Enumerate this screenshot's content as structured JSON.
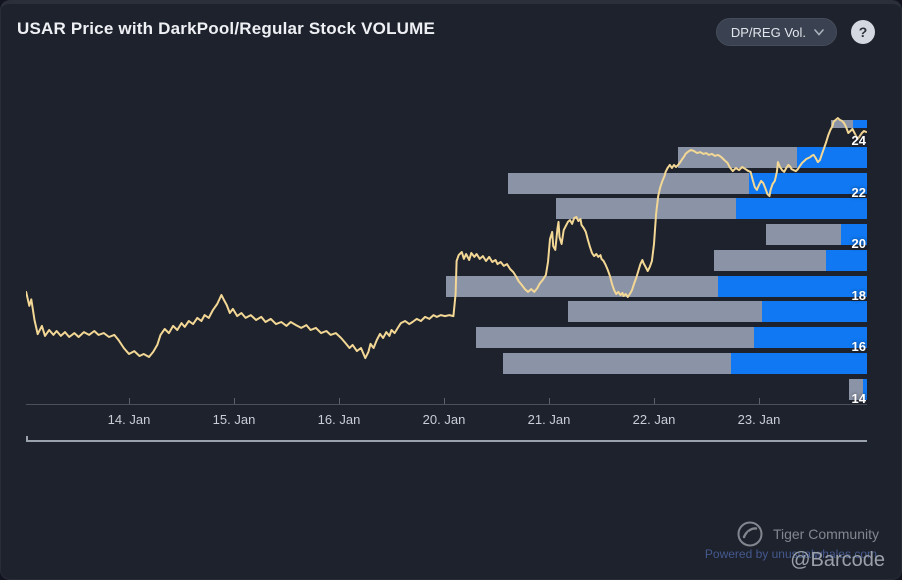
{
  "header": {
    "title": "USAR Price with DarkPool/Regular Stock VOLUME",
    "volume_selector": {
      "label": "DP/REG Vol."
    },
    "help_label": "?"
  },
  "footer": {
    "community_label": "Tiger Community",
    "powered_by": "Powered by unusualwhales.com",
    "watermark": "@Barcode"
  },
  "colors": {
    "background": "#1e222c",
    "price_line": "#f2d795",
    "dark_pool_bar": "#8b93a6",
    "regular_bar": "#0f78f2",
    "y_label": "#ffffff",
    "x_label": "#c9ced6",
    "axis_line": "#4a505c",
    "baseline": "#9aa2ae"
  },
  "chart_data": {
    "type": "line+barh",
    "title": "USAR Price with DarkPool/Regular Stock VOLUME",
    "x_axis": {
      "tick_labels": [
        "14. Jan",
        "15. Jan",
        "16. Jan",
        "20. Jan",
        "21. Jan",
        "22. Jan",
        "23. Jan"
      ],
      "unit": "trading-day index; 0 = 14. Jan tick, 1 unit per listed session"
    },
    "y_axis": {
      "ticks": [
        14,
        16,
        18,
        20,
        22,
        24
      ],
      "range": [
        13.75,
        24.95
      ],
      "side": "right"
    },
    "price_line": {
      "name": "USAR price",
      "points": [
        [
          -0.98,
          18.14
        ],
        [
          -0.95,
          17.6
        ],
        [
          -0.93,
          17.85
        ],
        [
          -0.9,
          17.05
        ],
        [
          -0.87,
          16.5
        ],
        [
          -0.83,
          16.82
        ],
        [
          -0.8,
          16.43
        ],
        [
          -0.76,
          16.66
        ],
        [
          -0.72,
          16.47
        ],
        [
          -0.69,
          16.62
        ],
        [
          -0.65,
          16.43
        ],
        [
          -0.61,
          16.58
        ],
        [
          -0.57,
          16.39
        ],
        [
          -0.52,
          16.54
        ],
        [
          -0.48,
          16.39
        ],
        [
          -0.43,
          16.58
        ],
        [
          -0.38,
          16.47
        ],
        [
          -0.33,
          16.62
        ],
        [
          -0.29,
          16.47
        ],
        [
          -0.24,
          16.54
        ],
        [
          -0.19,
          16.39
        ],
        [
          -0.14,
          16.47
        ],
        [
          -0.1,
          16.27
        ],
        [
          -0.05,
          15.96
        ],
        [
          0,
          15.73
        ],
        [
          0.05,
          15.84
        ],
        [
          0.1,
          15.65
        ],
        [
          0.14,
          15.73
        ],
        [
          0.19,
          15.61
        ],
        [
          0.23,
          15.81
        ],
        [
          0.27,
          16.08
        ],
        [
          0.3,
          16.47
        ],
        [
          0.34,
          16.7
        ],
        [
          0.38,
          16.54
        ],
        [
          0.42,
          16.82
        ],
        [
          0.46,
          16.66
        ],
        [
          0.5,
          16.93
        ],
        [
          0.53,
          16.78
        ],
        [
          0.57,
          17.01
        ],
        [
          0.61,
          16.89
        ],
        [
          0.65,
          17.13
        ],
        [
          0.69,
          17.01
        ],
        [
          0.72,
          17.24
        ],
        [
          0.76,
          17.13
        ],
        [
          0.8,
          17.44
        ],
        [
          0.84,
          17.67
        ],
        [
          0.88,
          18.02
        ],
        [
          0.9,
          17.86
        ],
        [
          0.93,
          17.63
        ],
        [
          0.96,
          17.32
        ],
        [
          0.99,
          17.48
        ],
        [
          1.03,
          17.2
        ],
        [
          1.07,
          17.32
        ],
        [
          1.11,
          17.13
        ],
        [
          1.16,
          17.24
        ],
        [
          1.21,
          17.05
        ],
        [
          1.26,
          17.17
        ],
        [
          1.3,
          16.97
        ],
        [
          1.35,
          17.09
        ],
        [
          1.4,
          16.89
        ],
        [
          1.45,
          16.97
        ],
        [
          1.5,
          16.82
        ],
        [
          1.54,
          16.97
        ],
        [
          1.59,
          16.85
        ],
        [
          1.64,
          16.74
        ],
        [
          1.69,
          16.85
        ],
        [
          1.73,
          16.66
        ],
        [
          1.78,
          16.74
        ],
        [
          1.83,
          16.54
        ],
        [
          1.88,
          16.62
        ],
        [
          1.92,
          16.47
        ],
        [
          1.97,
          16.54
        ],
        [
          2.02,
          16.35
        ],
        [
          2.06,
          16.16
        ],
        [
          2.1,
          15.96
        ],
        [
          2.13,
          16.08
        ],
        [
          2.17,
          15.84
        ],
        [
          2.21,
          15.96
        ],
        [
          2.25,
          15.57
        ],
        [
          2.28,
          15.81
        ],
        [
          2.3,
          16.12
        ],
        [
          2.33,
          15.96
        ],
        [
          2.36,
          16.27
        ],
        [
          2.39,
          16.51
        ],
        [
          2.42,
          16.35
        ],
        [
          2.45,
          16.58
        ],
        [
          2.48,
          16.43
        ],
        [
          2.5,
          16.66
        ],
        [
          2.53,
          16.54
        ],
        [
          2.56,
          16.74
        ],
        [
          2.59,
          16.93
        ],
        [
          2.63,
          17.01
        ],
        [
          2.67,
          16.89
        ],
        [
          2.7,
          16.97
        ],
        [
          2.74,
          17.09
        ],
        [
          2.78,
          17.01
        ],
        [
          2.82,
          17.17
        ],
        [
          2.86,
          17.09
        ],
        [
          2.9,
          17.24
        ],
        [
          2.93,
          17.17
        ],
        [
          2.97,
          17.24
        ],
        [
          3.01,
          17.2
        ],
        [
          3.05,
          17.24
        ],
        [
          3.09,
          17.2
        ],
        [
          3.11,
          18.06
        ],
        [
          3.12,
          19.34
        ],
        [
          3.14,
          19.57
        ],
        [
          3.17,
          19.69
        ],
        [
          3.19,
          19.42
        ],
        [
          3.21,
          19.61
        ],
        [
          3.24,
          19.38
        ],
        [
          3.26,
          19.65
        ],
        [
          3.29,
          19.5
        ],
        [
          3.31,
          19.61
        ],
        [
          3.34,
          19.42
        ],
        [
          3.37,
          19.53
        ],
        [
          3.4,
          19.34
        ],
        [
          3.43,
          19.5
        ],
        [
          3.46,
          19.3
        ],
        [
          3.49,
          19.38
        ],
        [
          3.51,
          19.22
        ],
        [
          3.54,
          19.3
        ],
        [
          3.57,
          19.15
        ],
        [
          3.6,
          19.22
        ],
        [
          3.63,
          19.03
        ],
        [
          3.66,
          18.91
        ],
        [
          3.69,
          18.72
        ],
        [
          3.71,
          18.56
        ],
        [
          3.74,
          18.41
        ],
        [
          3.77,
          18.25
        ],
        [
          3.8,
          18.14
        ],
        [
          3.83,
          18.25
        ],
        [
          3.86,
          18.14
        ],
        [
          3.89,
          18.29
        ],
        [
          3.91,
          18.45
        ],
        [
          3.94,
          18.6
        ],
        [
          3.97,
          18.8
        ],
        [
          3.99,
          19.3
        ],
        [
          4.01,
          20.19
        ],
        [
          4.03,
          20.47
        ],
        [
          4.04,
          19.92
        ],
        [
          4.06,
          19.77
        ],
        [
          4.08,
          20.58
        ],
        [
          4.09,
          20.86
        ],
        [
          4.1,
          20.27
        ],
        [
          4.12,
          20
        ],
        [
          4.14,
          20.54
        ],
        [
          4.16,
          20.7
        ],
        [
          4.18,
          20.86
        ],
        [
          4.2,
          20.93
        ],
        [
          4.22,
          20.78
        ],
        [
          4.24,
          21.01
        ],
        [
          4.26,
          21.05
        ],
        [
          4.28,
          20.89
        ],
        [
          4.3,
          20.97
        ],
        [
          4.31,
          20.74
        ],
        [
          4.33,
          20.62
        ],
        [
          4.35,
          20.47
        ],
        [
          4.37,
          20.16
        ],
        [
          4.39,
          19.88
        ],
        [
          4.41,
          19.65
        ],
        [
          4.43,
          19.53
        ],
        [
          4.45,
          19.61
        ],
        [
          4.47,
          19.5
        ],
        [
          4.49,
          19.57
        ],
        [
          4.5,
          19.42
        ],
        [
          4.52,
          19.34
        ],
        [
          4.54,
          19.18
        ],
        [
          4.56,
          18.99
        ],
        [
          4.58,
          18.76
        ],
        [
          4.6,
          18.45
        ],
        [
          4.62,
          18.21
        ],
        [
          4.64,
          18.06
        ],
        [
          4.66,
          18.14
        ],
        [
          4.68,
          18.02
        ],
        [
          4.7,
          18.1
        ],
        [
          4.71,
          17.98
        ],
        [
          4.73,
          18.06
        ],
        [
          4.75,
          17.94
        ],
        [
          4.77,
          18.06
        ],
        [
          4.79,
          18.21
        ],
        [
          4.81,
          18.45
        ],
        [
          4.83,
          18.68
        ],
        [
          4.85,
          18.95
        ],
        [
          4.87,
          19.22
        ],
        [
          4.89,
          19.38
        ],
        [
          4.9,
          19.26
        ],
        [
          4.92,
          19.11
        ],
        [
          4.94,
          18.95
        ],
        [
          4.96,
          19.11
        ],
        [
          4.98,
          19.34
        ],
        [
          5,
          20
        ],
        [
          5.02,
          21.17
        ],
        [
          5.04,
          21.86
        ],
        [
          5.06,
          22.21
        ],
        [
          5.08,
          22.45
        ],
        [
          5.1,
          22.64
        ],
        [
          5.11,
          22.8
        ],
        [
          5.13,
          22.95
        ],
        [
          5.15,
          23.07
        ],
        [
          5.17,
          22.95
        ],
        [
          5.19,
          23.07
        ],
        [
          5.21,
          22.99
        ],
        [
          5.23,
          23.07
        ],
        [
          5.25,
          23.18
        ],
        [
          5.27,
          23.3
        ],
        [
          5.29,
          23.42
        ],
        [
          5.3,
          23.5
        ],
        [
          5.32,
          23.57
        ],
        [
          5.35,
          23.65
        ],
        [
          5.38,
          23.61
        ],
        [
          5.41,
          23.53
        ],
        [
          5.44,
          23.57
        ],
        [
          5.47,
          23.5
        ],
        [
          5.5,
          23.53
        ],
        [
          5.52,
          23.46
        ],
        [
          5.55,
          23.5
        ],
        [
          5.58,
          23.42
        ],
        [
          5.61,
          23.46
        ],
        [
          5.64,
          23.38
        ],
        [
          5.67,
          23.26
        ],
        [
          5.7,
          23.15
        ],
        [
          5.72,
          22.99
        ],
        [
          5.75,
          22.83
        ],
        [
          5.78,
          22.95
        ],
        [
          5.81,
          22.87
        ],
        [
          5.84,
          22.99
        ],
        [
          5.87,
          22.91
        ],
        [
          5.9,
          22.83
        ],
        [
          5.92,
          22.8
        ],
        [
          5.94,
          22.49
        ],
        [
          5.96,
          22.21
        ],
        [
          5.98,
          22.1
        ],
        [
          6,
          22.29
        ],
        [
          6.02,
          22.45
        ],
        [
          6.04,
          22.37
        ],
        [
          6.06,
          22.17
        ],
        [
          6.08,
          21.94
        ],
        [
          6.1,
          21.86
        ],
        [
          6.11,
          22.1
        ],
        [
          6.13,
          22.33
        ],
        [
          6.15,
          22.45
        ],
        [
          6.17,
          22.8
        ],
        [
          6.18,
          23.18
        ],
        [
          6.2,
          22.99
        ],
        [
          6.22,
          22.87
        ],
        [
          6.24,
          22.8
        ],
        [
          6.26,
          22.95
        ],
        [
          6.28,
          23.07
        ],
        [
          6.3,
          22.99
        ],
        [
          6.31,
          22.91
        ],
        [
          6.33,
          22.87
        ],
        [
          6.35,
          22.83
        ],
        [
          6.37,
          22.91
        ],
        [
          6.39,
          23.03
        ],
        [
          6.41,
          23.15
        ],
        [
          6.43,
          23.22
        ],
        [
          6.45,
          23.3
        ],
        [
          6.47,
          23.34
        ],
        [
          6.49,
          23.38
        ],
        [
          6.5,
          23.42
        ],
        [
          6.52,
          23.46
        ],
        [
          6.54,
          23.34
        ],
        [
          6.56,
          23.18
        ],
        [
          6.58,
          23.26
        ],
        [
          6.6,
          23.5
        ],
        [
          6.62,
          23.73
        ],
        [
          6.64,
          23.96
        ],
        [
          6.66,
          24.23
        ],
        [
          6.68,
          24.43
        ],
        [
          6.7,
          24.58
        ],
        [
          6.71,
          24.74
        ],
        [
          6.73,
          24.82
        ],
        [
          6.75,
          24.89
        ],
        [
          6.77,
          24.82
        ],
        [
          6.79,
          24.78
        ],
        [
          6.81,
          24.7
        ],
        [
          6.83,
          24.54
        ],
        [
          6.85,
          24.31
        ],
        [
          6.87,
          24.39
        ],
        [
          6.89,
          24.47
        ],
        [
          6.9,
          24.39
        ],
        [
          6.92,
          24.23
        ],
        [
          6.94,
          24.08
        ],
        [
          6.96,
          24.19
        ],
        [
          6.98,
          24.31
        ],
        [
          7,
          24.39
        ],
        [
          7.02,
          24.35
        ]
      ]
    },
    "volume_profile": {
      "units": "relative volume, arbitrary units (bars right-aligned, stacked dark_pool + regular)",
      "series": [
        {
          "name": "DarkPool volume",
          "color_key": "dark_pool_bar"
        },
        {
          "name": "Regular volume",
          "color_key": "regular_bar"
        }
      ],
      "buckets": [
        {
          "price_bucket": 24,
          "dark_pool": 22,
          "regular": 14,
          "clipped": true
        },
        {
          "price_bucket": 23,
          "dark_pool": 119,
          "regular": 70
        },
        {
          "price_bucket": 22,
          "dark_pool": 241,
          "regular": 118
        },
        {
          "price_bucket": 21,
          "dark_pool": 180,
          "regular": 131
        },
        {
          "price_bucket": 20,
          "dark_pool": 75,
          "regular": 26
        },
        {
          "price_bucket": 19,
          "dark_pool": 112,
          "regular": 41
        },
        {
          "price_bucket": 18,
          "dark_pool": 272,
          "regular": 149
        },
        {
          "price_bucket": 17,
          "dark_pool": 194,
          "regular": 105
        },
        {
          "price_bucket": 16,
          "dark_pool": 278,
          "regular": 113
        },
        {
          "price_bucket": 15,
          "dark_pool": 228,
          "regular": 136
        },
        {
          "price_bucket": 14,
          "dark_pool": 14,
          "regular": 4
        }
      ]
    }
  }
}
